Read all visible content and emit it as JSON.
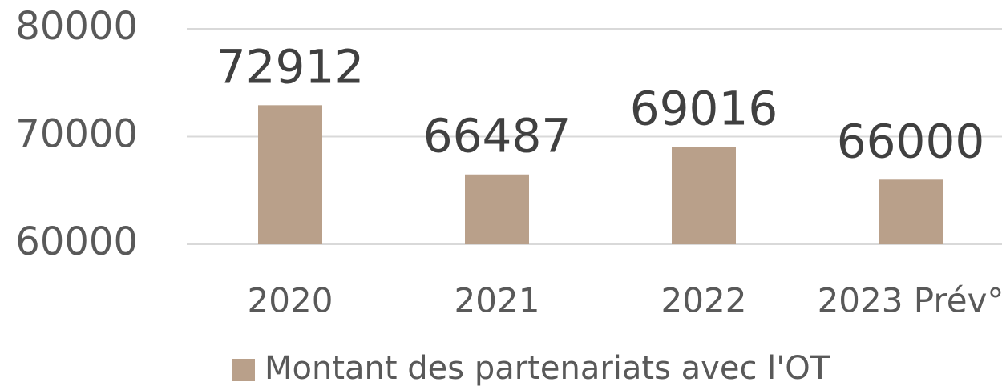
{
  "chart_data": {
    "type": "bar",
    "categories": [
      "2020",
      "2021",
      "2022",
      "2023 Prév°"
    ],
    "series": [
      {
        "name": "Montant des partenariats avec l'OT",
        "color": "#b9a08a",
        "values": [
          72912,
          66487,
          69016,
          66000
        ]
      }
    ],
    "ylim": [
      60000,
      80000
    ],
    "yticks": [
      60000,
      70000,
      80000
    ],
    "grid": true,
    "legend": "bottom",
    "data_labels": true
  }
}
